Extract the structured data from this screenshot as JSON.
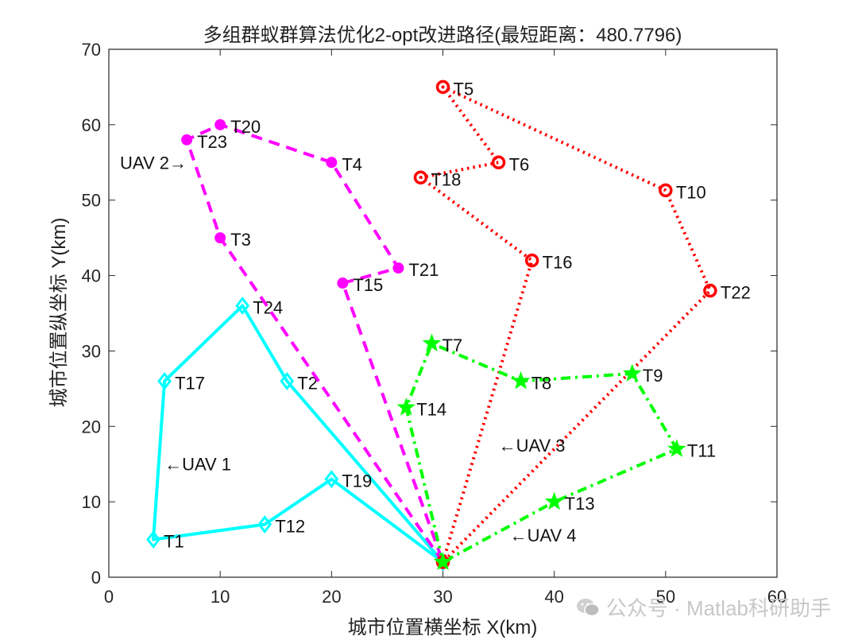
{
  "chart_data": {
    "type": "line",
    "title": "多组群蚁群算法优化2-opt改进路径(最短距离：480.7796)",
    "xlabel": "城市位置横坐标 X(km)",
    "ylabel": "城市位置纵坐标 Y(km)",
    "xlim": [
      0,
      60
    ],
    "ylim": [
      0,
      70
    ],
    "xticks": [
      0,
      10,
      20,
      30,
      40,
      50,
      60
    ],
    "yticks": [
      0,
      10,
      20,
      30,
      40,
      50,
      60,
      70
    ],
    "grid": false,
    "depot": {
      "x": 30,
      "y": 2
    },
    "series": [
      {
        "name": "UAV 1",
        "color": "#00ffff",
        "style": "solid",
        "marker": "diamond",
        "route": [
          [
            30,
            2
          ],
          [
            20,
            13
          ],
          [
            14,
            7
          ],
          [
            4,
            5
          ],
          [
            5,
            26
          ],
          [
            12,
            36
          ],
          [
            16,
            26
          ],
          [
            30,
            2
          ]
        ],
        "points": [
          {
            "label": "T19",
            "x": 20,
            "y": 13
          },
          {
            "label": "T12",
            "x": 14,
            "y": 7
          },
          {
            "label": "T1",
            "x": 4,
            "y": 5
          },
          {
            "label": "T17",
            "x": 5,
            "y": 26
          },
          {
            "label": "T24",
            "x": 12,
            "y": 36
          },
          {
            "label": "T2",
            "x": 16,
            "y": 26
          }
        ],
        "annotation": {
          "text": "←UAV 1",
          "x": 5,
          "y": 15
        }
      },
      {
        "name": "UAV 2",
        "color": "#ff00ff",
        "style": "dashed",
        "marker": "dot",
        "route": [
          [
            30,
            2
          ],
          [
            10,
            45
          ],
          [
            7,
            58
          ],
          [
            10,
            60
          ],
          [
            20,
            55
          ],
          [
            26,
            41
          ],
          [
            21,
            39
          ],
          [
            30,
            2
          ]
        ],
        "points": [
          {
            "label": "T3",
            "x": 10,
            "y": 45
          },
          {
            "label": "T23",
            "x": 7,
            "y": 58
          },
          {
            "label": "T20",
            "x": 10,
            "y": 60
          },
          {
            "label": "T4",
            "x": 20,
            "y": 55
          },
          {
            "label": "T21",
            "x": 26,
            "y": 41
          },
          {
            "label": "T15",
            "x": 21,
            "y": 39
          }
        ],
        "annotation": {
          "text": "UAV 2→",
          "x": 1,
          "y": 55
        }
      },
      {
        "name": "UAV 3",
        "color": "#ff0000",
        "style": "dotted",
        "marker": "circle",
        "route": [
          [
            30,
            2
          ],
          [
            38,
            42
          ],
          [
            28,
            53
          ],
          [
            35,
            55
          ],
          [
            30,
            65
          ],
          [
            50,
            51.3
          ],
          [
            54,
            38
          ],
          [
            30,
            2
          ]
        ],
        "points": [
          {
            "label": "T16",
            "x": 38,
            "y": 42
          },
          {
            "label": "T18",
            "x": 28,
            "y": 53
          },
          {
            "label": "T6",
            "x": 35,
            "y": 55
          },
          {
            "label": "T5",
            "x": 30,
            "y": 65
          },
          {
            "label": "T10",
            "x": 50,
            "y": 51.3
          },
          {
            "label": "T22",
            "x": 54,
            "y": 38
          }
        ],
        "annotation": {
          "text": "←UAV 3",
          "x": 35,
          "y": 17.5
        }
      },
      {
        "name": "UAV 4",
        "color": "#00ff00",
        "style": "dashdot",
        "marker": "star",
        "route": [
          [
            30,
            2
          ],
          [
            26.7,
            22.5
          ],
          [
            29,
            31
          ],
          [
            37,
            26
          ],
          [
            47,
            27
          ],
          [
            51,
            17
          ],
          [
            40,
            10
          ],
          [
            30,
            2
          ]
        ],
        "points": [
          {
            "label": "T14",
            "x": 26.7,
            "y": 22.5
          },
          {
            "label": "T7",
            "x": 29,
            "y": 31
          },
          {
            "label": "T8",
            "x": 37,
            "y": 26
          },
          {
            "label": "T9",
            "x": 47,
            "y": 27
          },
          {
            "label": "T11",
            "x": 51,
            "y": 17
          },
          {
            "label": "T13",
            "x": 40,
            "y": 10
          }
        ],
        "annotation": {
          "text": "←UAV 4",
          "x": 36,
          "y": 5.6
        }
      }
    ]
  },
  "watermark": {
    "text": "公众号 · Matlab科研助手",
    "icon": "wechat-icon"
  }
}
